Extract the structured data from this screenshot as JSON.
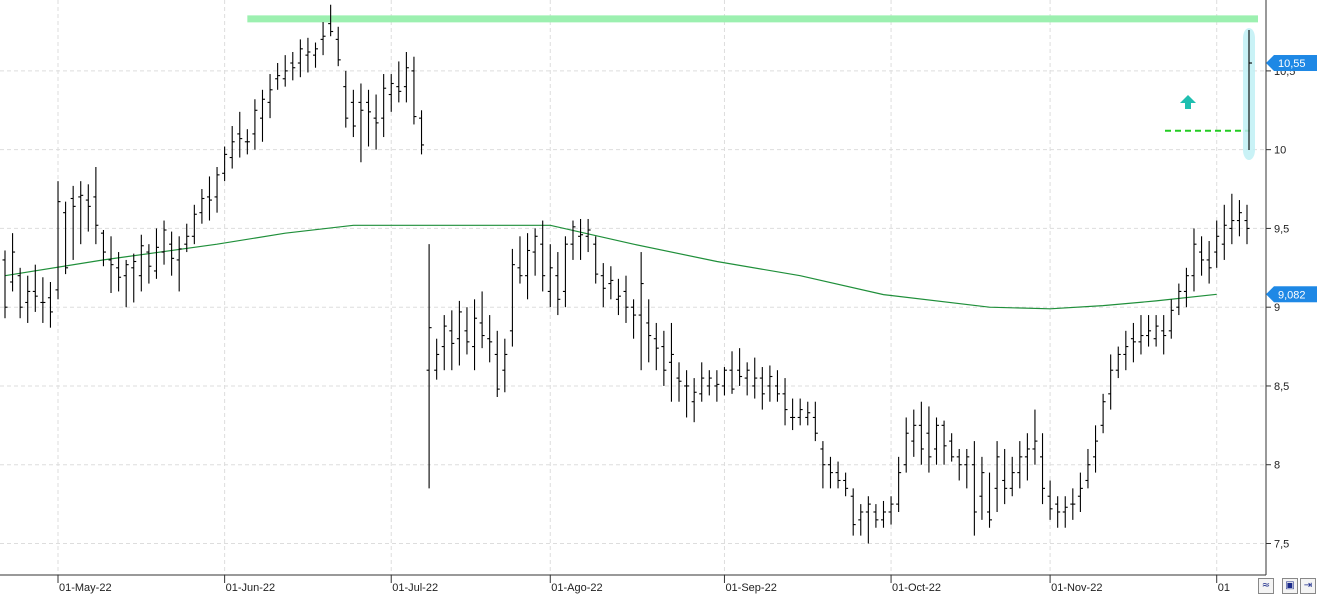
{
  "chart_data": {
    "type": "ohlc",
    "title": "",
    "xlabel": "",
    "ylabel": "",
    "ylim": [
      7.3,
      10.95
    ],
    "y_ticks": [
      "7,5",
      "8",
      "8,5",
      "9",
      "9,5",
      "10",
      "10,5"
    ],
    "y_tick_values": [
      7.5,
      8,
      8.5,
      9,
      9.5,
      10,
      10.5
    ],
    "x_labels": [
      {
        "date": "2022-05-01",
        "label": "01-May-22"
      },
      {
        "date": "2022-06-01",
        "label": "01-Jun-22"
      },
      {
        "date": "2022-07-01",
        "label": "01-Jul-22"
      },
      {
        "date": "2022-08-01",
        "label": "01-Ago-22"
      },
      {
        "date": "2022-09-01",
        "label": "01-Sep-22"
      },
      {
        "date": "2022-10-01",
        "label": "01-Oct-22"
      },
      {
        "date": "2022-11-01",
        "label": "01-Nov-22"
      },
      {
        "date": "2022-12-01",
        "label": "01"
      }
    ],
    "grid": true,
    "price_badges": [
      {
        "value": 10.55,
        "label": "10,55",
        "color": "#1e88e5"
      },
      {
        "value": 9.082,
        "label": "9,082",
        "color": "#1e88e5"
      }
    ],
    "resistance_line": {
      "value": 10.83,
      "from": "2022-06-06",
      "to": "2022-12-01",
      "color": "#9cf0b0"
    },
    "breakout_line": {
      "value": 10.12,
      "from": "2022-11-18",
      "to": "2022-12-01",
      "color": "#22cc22",
      "style": "dashed"
    },
    "moving_average": {
      "color": "#1f8f3a",
      "points": [
        [
          "2022-04-21",
          9.2
        ],
        [
          "2022-05-10",
          9.3
        ],
        [
          "2022-05-31",
          9.4
        ],
        [
          "2022-06-13",
          9.47
        ],
        [
          "2022-06-24",
          9.52
        ],
        [
          "2022-07-14",
          9.52
        ],
        [
          "2022-08-01",
          9.52
        ],
        [
          "2022-08-16",
          9.4
        ],
        [
          "2022-08-31",
          9.29
        ],
        [
          "2022-09-15",
          9.2
        ],
        [
          "2022-09-30",
          9.08
        ],
        [
          "2022-10-20",
          9.0
        ],
        [
          "2022-11-01",
          8.99
        ],
        [
          "2022-11-10",
          9.01
        ],
        [
          "2022-11-20",
          9.04
        ],
        [
          "2022-12-01",
          9.082
        ]
      ]
    },
    "bars": [
      [
        "2022-04-21",
        9.3,
        9.36,
        8.93,
        9.0
      ],
      [
        "2022-04-22",
        9.16,
        9.47,
        9.1,
        9.35
      ],
      [
        "2022-04-25",
        9.2,
        9.25,
        8.93,
        9.0
      ],
      [
        "2022-04-26",
        9.03,
        9.2,
        8.9,
        9.1
      ],
      [
        "2022-04-27",
        9.1,
        9.27,
        8.97,
        9.07
      ],
      [
        "2022-04-28",
        9.03,
        9.19,
        8.9,
        9.03
      ],
      [
        "2022-04-29",
        9.06,
        9.16,
        8.87,
        8.97
      ],
      [
        "2022-05-02",
        9.11,
        9.8,
        9.05,
        9.67
      ],
      [
        "2022-05-03",
        9.6,
        9.67,
        9.21,
        9.25
      ],
      [
        "2022-05-04",
        9.69,
        9.77,
        9.3,
        9.64
      ],
      [
        "2022-05-05",
        9.7,
        9.8,
        9.4,
        9.71
      ],
      [
        "2022-05-06",
        9.68,
        9.78,
        9.48,
        9.64
      ],
      [
        "2022-05-09",
        9.7,
        9.89,
        9.4,
        9.52
      ],
      [
        "2022-05-10",
        9.47,
        9.49,
        9.26,
        9.35
      ],
      [
        "2022-05-11",
        9.3,
        9.45,
        9.09,
        9.27
      ],
      [
        "2022-05-12",
        9.25,
        9.35,
        9.1,
        9.19
      ],
      [
        "2022-05-13",
        9.2,
        9.3,
        9.0,
        9.27
      ],
      [
        "2022-05-16",
        9.25,
        9.34,
        9.03,
        9.29
      ],
      [
        "2022-05-17",
        9.2,
        9.46,
        9.1,
        9.39
      ],
      [
        "2022-05-18",
        9.35,
        9.4,
        9.15,
        9.26
      ],
      [
        "2022-05-19",
        9.23,
        9.5,
        9.18,
        9.38
      ],
      [
        "2022-05-20",
        9.35,
        9.55,
        9.27,
        9.49
      ],
      [
        "2022-05-23",
        9.4,
        9.48,
        9.2,
        9.31
      ],
      [
        "2022-05-24",
        9.3,
        9.45,
        9.1,
        9.37
      ],
      [
        "2022-05-25",
        9.4,
        9.53,
        9.35,
        9.45
      ],
      [
        "2022-05-26",
        9.45,
        9.65,
        9.4,
        9.59
      ],
      [
        "2022-05-27",
        9.6,
        9.75,
        9.53,
        9.69
      ],
      [
        "2022-05-30",
        9.7,
        9.83,
        9.55,
        9.68
      ],
      [
        "2022-05-31",
        9.7,
        9.89,
        9.6,
        9.84
      ],
      [
        "2022-06-01",
        9.85,
        10.02,
        9.8,
        9.97
      ],
      [
        "2022-06-02",
        9.95,
        10.15,
        9.88,
        10.05
      ],
      [
        "2022-06-03",
        10.1,
        10.24,
        9.95,
        10.07
      ],
      [
        "2022-06-06",
        10.05,
        10.13,
        9.97,
        10.05
      ],
      [
        "2022-06-07",
        10.1,
        10.32,
        10.0,
        10.25
      ],
      [
        "2022-06-08",
        10.2,
        10.38,
        10.05,
        10.32
      ],
      [
        "2022-06-09",
        10.3,
        10.48,
        10.2,
        10.38
      ],
      [
        "2022-06-10",
        10.45,
        10.55,
        10.38,
        10.47
      ],
      [
        "2022-06-13",
        10.45,
        10.6,
        10.4,
        10.5
      ],
      [
        "2022-06-14",
        10.55,
        10.62,
        10.44,
        10.52
      ],
      [
        "2022-06-15",
        10.55,
        10.7,
        10.46,
        10.64
      ],
      [
        "2022-06-16",
        10.6,
        10.71,
        10.49,
        10.62
      ],
      [
        "2022-06-17",
        10.6,
        10.68,
        10.52,
        10.64
      ],
      [
        "2022-06-20",
        10.7,
        10.81,
        10.6,
        10.72
      ],
      [
        "2022-06-21",
        10.8,
        10.92,
        10.72,
        10.75
      ],
      [
        "2022-06-22",
        10.7,
        10.78,
        10.53,
        10.57
      ],
      [
        "2022-06-23",
        10.4,
        10.5,
        10.14,
        10.2
      ],
      [
        "2022-06-24",
        10.3,
        10.38,
        10.08,
        10.15
      ],
      [
        "2022-06-27",
        10.3,
        10.42,
        9.92,
        10.25
      ],
      [
        "2022-06-28",
        10.3,
        10.38,
        10.02,
        10.24
      ],
      [
        "2022-06-29",
        10.2,
        10.35,
        10.0,
        10.17
      ],
      [
        "2022-06-30",
        10.2,
        10.48,
        10.08,
        10.39
      ],
      [
        "2022-07-01",
        10.35,
        10.48,
        10.24,
        10.42
      ],
      [
        "2022-07-04",
        10.4,
        10.56,
        10.3,
        10.37
      ],
      [
        "2022-07-05",
        10.4,
        10.62,
        10.3,
        10.52
      ],
      [
        "2022-07-06",
        10.5,
        10.59,
        10.16,
        10.21
      ],
      [
        "2022-07-07",
        10.2,
        10.25,
        9.97,
        10.03
      ],
      [
        "2022-07-08",
        8.6,
        9.4,
        7.85,
        8.87
      ],
      [
        "2022-07-11",
        8.6,
        8.8,
        8.54,
        8.7
      ],
      [
        "2022-07-12",
        8.75,
        8.95,
        8.6,
        8.88
      ],
      [
        "2022-07-13",
        8.85,
        8.98,
        8.6,
        8.77
      ],
      [
        "2022-07-14",
        8.8,
        9.04,
        8.63,
        8.97
      ],
      [
        "2022-07-15",
        8.85,
        9.0,
        8.7,
        8.78
      ],
      [
        "2022-07-18",
        8.75,
        9.05,
        8.6,
        8.93
      ],
      [
        "2022-07-19",
        8.9,
        9.1,
        8.74,
        8.82
      ],
      [
        "2022-07-20",
        8.8,
        8.95,
        8.65,
        8.78
      ],
      [
        "2022-07-21",
        8.7,
        8.85,
        8.43,
        8.48
      ],
      [
        "2022-07-22",
        8.6,
        8.8,
        8.46,
        8.7
      ],
      [
        "2022-07-25",
        8.85,
        9.37,
        8.75,
        9.27
      ],
      [
        "2022-07-26",
        9.25,
        9.45,
        9.15,
        9.2
      ],
      [
        "2022-07-27",
        9.2,
        9.47,
        9.05,
        9.36
      ],
      [
        "2022-07-28",
        9.35,
        9.5,
        9.2,
        9.45
      ],
      [
        "2022-07-29",
        9.4,
        9.55,
        9.1,
        9.2
      ],
      [
        "2022-08-01",
        9.1,
        9.4,
        9.0,
        9.25
      ],
      [
        "2022-08-02",
        9.2,
        9.35,
        8.95,
        9.05
      ],
      [
        "2022-08-03",
        9.1,
        9.45,
        9.0,
        9.4
      ],
      [
        "2022-08-04",
        9.4,
        9.55,
        9.3,
        9.51
      ],
      [
        "2022-08-05",
        9.45,
        9.56,
        9.3,
        9.46
      ],
      [
        "2022-08-08",
        9.45,
        9.56,
        9.35,
        9.49
      ],
      [
        "2022-08-09",
        9.4,
        9.45,
        9.15,
        9.21
      ],
      [
        "2022-08-10",
        9.2,
        9.28,
        9.0,
        9.12
      ],
      [
        "2022-08-11",
        9.15,
        9.26,
        9.05,
        9.17
      ],
      [
        "2022-08-12",
        9.05,
        9.18,
        8.95,
        9.07
      ],
      [
        "2022-08-15",
        9.1,
        9.2,
        8.9,
        9.0
      ],
      [
        "2022-08-16",
        9.0,
        9.05,
        8.8,
        8.95
      ],
      [
        "2022-08-17",
        8.95,
        9.35,
        8.6,
        9.15
      ],
      [
        "2022-08-18",
        8.9,
        9.05,
        8.65,
        8.82
      ],
      [
        "2022-08-19",
        8.8,
        8.9,
        8.6,
        8.74
      ],
      [
        "2022-08-22",
        8.75,
        8.85,
        8.5,
        8.6
      ],
      [
        "2022-08-23",
        8.65,
        8.9,
        8.4,
        8.7
      ],
      [
        "2022-08-24",
        8.55,
        8.65,
        8.4,
        8.53
      ],
      [
        "2022-08-25",
        8.5,
        8.6,
        8.3,
        8.5
      ],
      [
        "2022-08-26",
        8.4,
        8.55,
        8.27,
        8.46
      ],
      [
        "2022-08-29",
        8.45,
        8.65,
        8.4,
        8.55
      ],
      [
        "2022-08-30",
        8.5,
        8.6,
        8.44,
        8.55
      ],
      [
        "2022-08-31",
        8.5,
        8.6,
        8.4,
        8.51
      ],
      [
        "2022-09-01",
        8.5,
        8.62,
        8.44,
        8.6
      ],
      [
        "2022-09-02",
        8.6,
        8.72,
        8.45,
        8.48
      ],
      [
        "2022-09-05",
        8.6,
        8.74,
        8.5,
        8.56
      ],
      [
        "2022-09-06",
        8.55,
        8.65,
        8.44,
        8.6
      ],
      [
        "2022-09-07",
        8.5,
        8.68,
        8.42,
        8.55
      ],
      [
        "2022-09-08",
        8.55,
        8.62,
        8.35,
        8.45
      ],
      [
        "2022-09-09",
        8.5,
        8.63,
        8.4,
        8.56
      ],
      [
        "2022-09-12",
        8.5,
        8.6,
        8.4,
        8.45
      ],
      [
        "2022-09-13",
        8.45,
        8.55,
        8.25,
        8.35
      ],
      [
        "2022-09-14",
        8.3,
        8.42,
        8.22,
        8.3
      ],
      [
        "2022-09-15",
        8.3,
        8.42,
        8.25,
        8.35
      ],
      [
        "2022-09-16",
        8.3,
        8.4,
        8.25,
        8.33
      ],
      [
        "2022-09-19",
        8.3,
        8.4,
        8.15,
        8.2
      ],
      [
        "2022-09-20",
        8.1,
        8.15,
        7.85,
        8.0
      ],
      [
        "2022-09-21",
        8.0,
        8.05,
        7.85,
        7.95
      ],
      [
        "2022-09-22",
        7.95,
        8.02,
        7.85,
        7.9
      ],
      [
        "2022-09-23",
        7.9,
        7.95,
        7.8,
        7.85
      ],
      [
        "2022-09-26",
        7.8,
        7.85,
        7.55,
        7.62
      ],
      [
        "2022-09-27",
        7.65,
        7.75,
        7.55,
        7.7
      ],
      [
        "2022-09-28",
        7.7,
        7.8,
        7.5,
        7.75
      ],
      [
        "2022-09-29",
        7.7,
        7.75,
        7.6,
        7.65
      ],
      [
        "2022-09-30",
        7.65,
        7.77,
        7.6,
        7.7
      ],
      [
        "2022-10-03",
        7.7,
        7.8,
        7.62,
        7.75
      ],
      [
        "2022-10-04",
        7.75,
        8.05,
        7.7,
        7.95
      ],
      [
        "2022-10-05",
        8.0,
        8.3,
        7.95,
        8.2
      ],
      [
        "2022-10-06",
        8.15,
        8.35,
        8.05,
        8.25
      ],
      [
        "2022-10-07",
        8.25,
        8.4,
        8.0,
        8.1
      ],
      [
        "2022-10-10",
        8.2,
        8.37,
        7.95,
        8.05
      ],
      [
        "2022-10-11",
        8.1,
        8.3,
        8.0,
        8.25
      ],
      [
        "2022-10-12",
        8.25,
        8.28,
        8.0,
        8.12
      ],
      [
        "2022-10-13",
        8.15,
        8.2,
        8.02,
        8.05
      ],
      [
        "2022-10-14",
        8.05,
        8.1,
        7.9,
        8.0
      ],
      [
        "2022-10-17",
        8.0,
        8.1,
        7.85,
        8.05
      ],
      [
        "2022-10-18",
        8.0,
        8.15,
        7.55,
        7.7
      ],
      [
        "2022-10-19",
        7.8,
        8.05,
        7.65,
        7.95
      ],
      [
        "2022-10-20",
        7.7,
        7.95,
        7.6,
        7.65
      ],
      [
        "2022-10-21",
        7.85,
        8.15,
        7.7,
        8.05
      ],
      [
        "2022-10-24",
        7.9,
        8.1,
        7.75,
        7.85
      ],
      [
        "2022-10-25",
        7.85,
        8.05,
        7.8,
        7.95
      ],
      [
        "2022-10-26",
        7.95,
        8.15,
        7.85,
        8.05
      ],
      [
        "2022-10-27",
        8.05,
        8.2,
        7.9,
        8.1
      ],
      [
        "2022-10-28",
        8.1,
        8.35,
        8.0,
        8.15
      ],
      [
        "2022-10-31",
        8.05,
        8.2,
        7.75,
        7.85
      ],
      [
        "2022-11-01",
        7.8,
        7.9,
        7.65,
        7.72
      ],
      [
        "2022-11-02",
        7.75,
        7.8,
        7.6,
        7.7
      ],
      [
        "2022-11-03",
        7.7,
        7.8,
        7.6,
        7.73
      ],
      [
        "2022-11-04",
        7.75,
        7.85,
        7.65,
        7.75
      ],
      [
        "2022-11-07",
        7.8,
        7.95,
        7.7,
        7.85
      ],
      [
        "2022-11-08",
        7.9,
        8.1,
        7.85,
        8.0
      ],
      [
        "2022-11-09",
        8.05,
        8.25,
        7.95,
        8.15
      ],
      [
        "2022-11-10",
        8.25,
        8.45,
        8.2,
        8.4
      ],
      [
        "2022-11-11",
        8.45,
        8.7,
        8.35,
        8.6
      ],
      [
        "2022-11-14",
        8.6,
        8.75,
        8.55,
        8.7
      ],
      [
        "2022-11-15",
        8.7,
        8.85,
        8.6,
        8.75
      ],
      [
        "2022-11-16",
        8.8,
        8.9,
        8.65,
        8.78
      ],
      [
        "2022-11-17",
        8.78,
        8.95,
        8.7,
        8.82
      ],
      [
        "2022-11-18",
        8.82,
        8.95,
        8.75,
        8.85
      ],
      [
        "2022-11-21",
        8.8,
        8.95,
        8.75,
        8.88
      ],
      [
        "2022-11-22",
        8.85,
        8.95,
        8.7,
        8.82
      ],
      [
        "2022-11-23",
        8.85,
        9.05,
        8.8,
        8.98
      ],
      [
        "2022-11-24",
        9.0,
        9.15,
        8.95,
        9.1
      ],
      [
        "2022-11-25",
        9.1,
        9.25,
        9.0,
        9.2
      ],
      [
        "2022-11-28",
        9.2,
        9.5,
        9.1,
        9.4
      ],
      [
        "2022-11-29",
        9.35,
        9.45,
        9.2,
        9.3
      ],
      [
        "2022-11-30",
        9.3,
        9.42,
        9.15,
        9.25
      ],
      [
        "2022-12-01",
        9.35,
        9.55,
        9.25,
        9.45
      ],
      [
        "2022-12-02",
        9.4,
        9.65,
        9.3,
        9.52
      ],
      [
        "2022-12-05",
        9.5,
        9.72,
        9.4,
        9.55
      ],
      [
        "2022-12-06",
        9.55,
        9.68,
        9.45,
        9.6
      ],
      [
        "2022-12-07",
        9.55,
        9.65,
        9.4,
        9.5
      ]
    ]
  }
}
